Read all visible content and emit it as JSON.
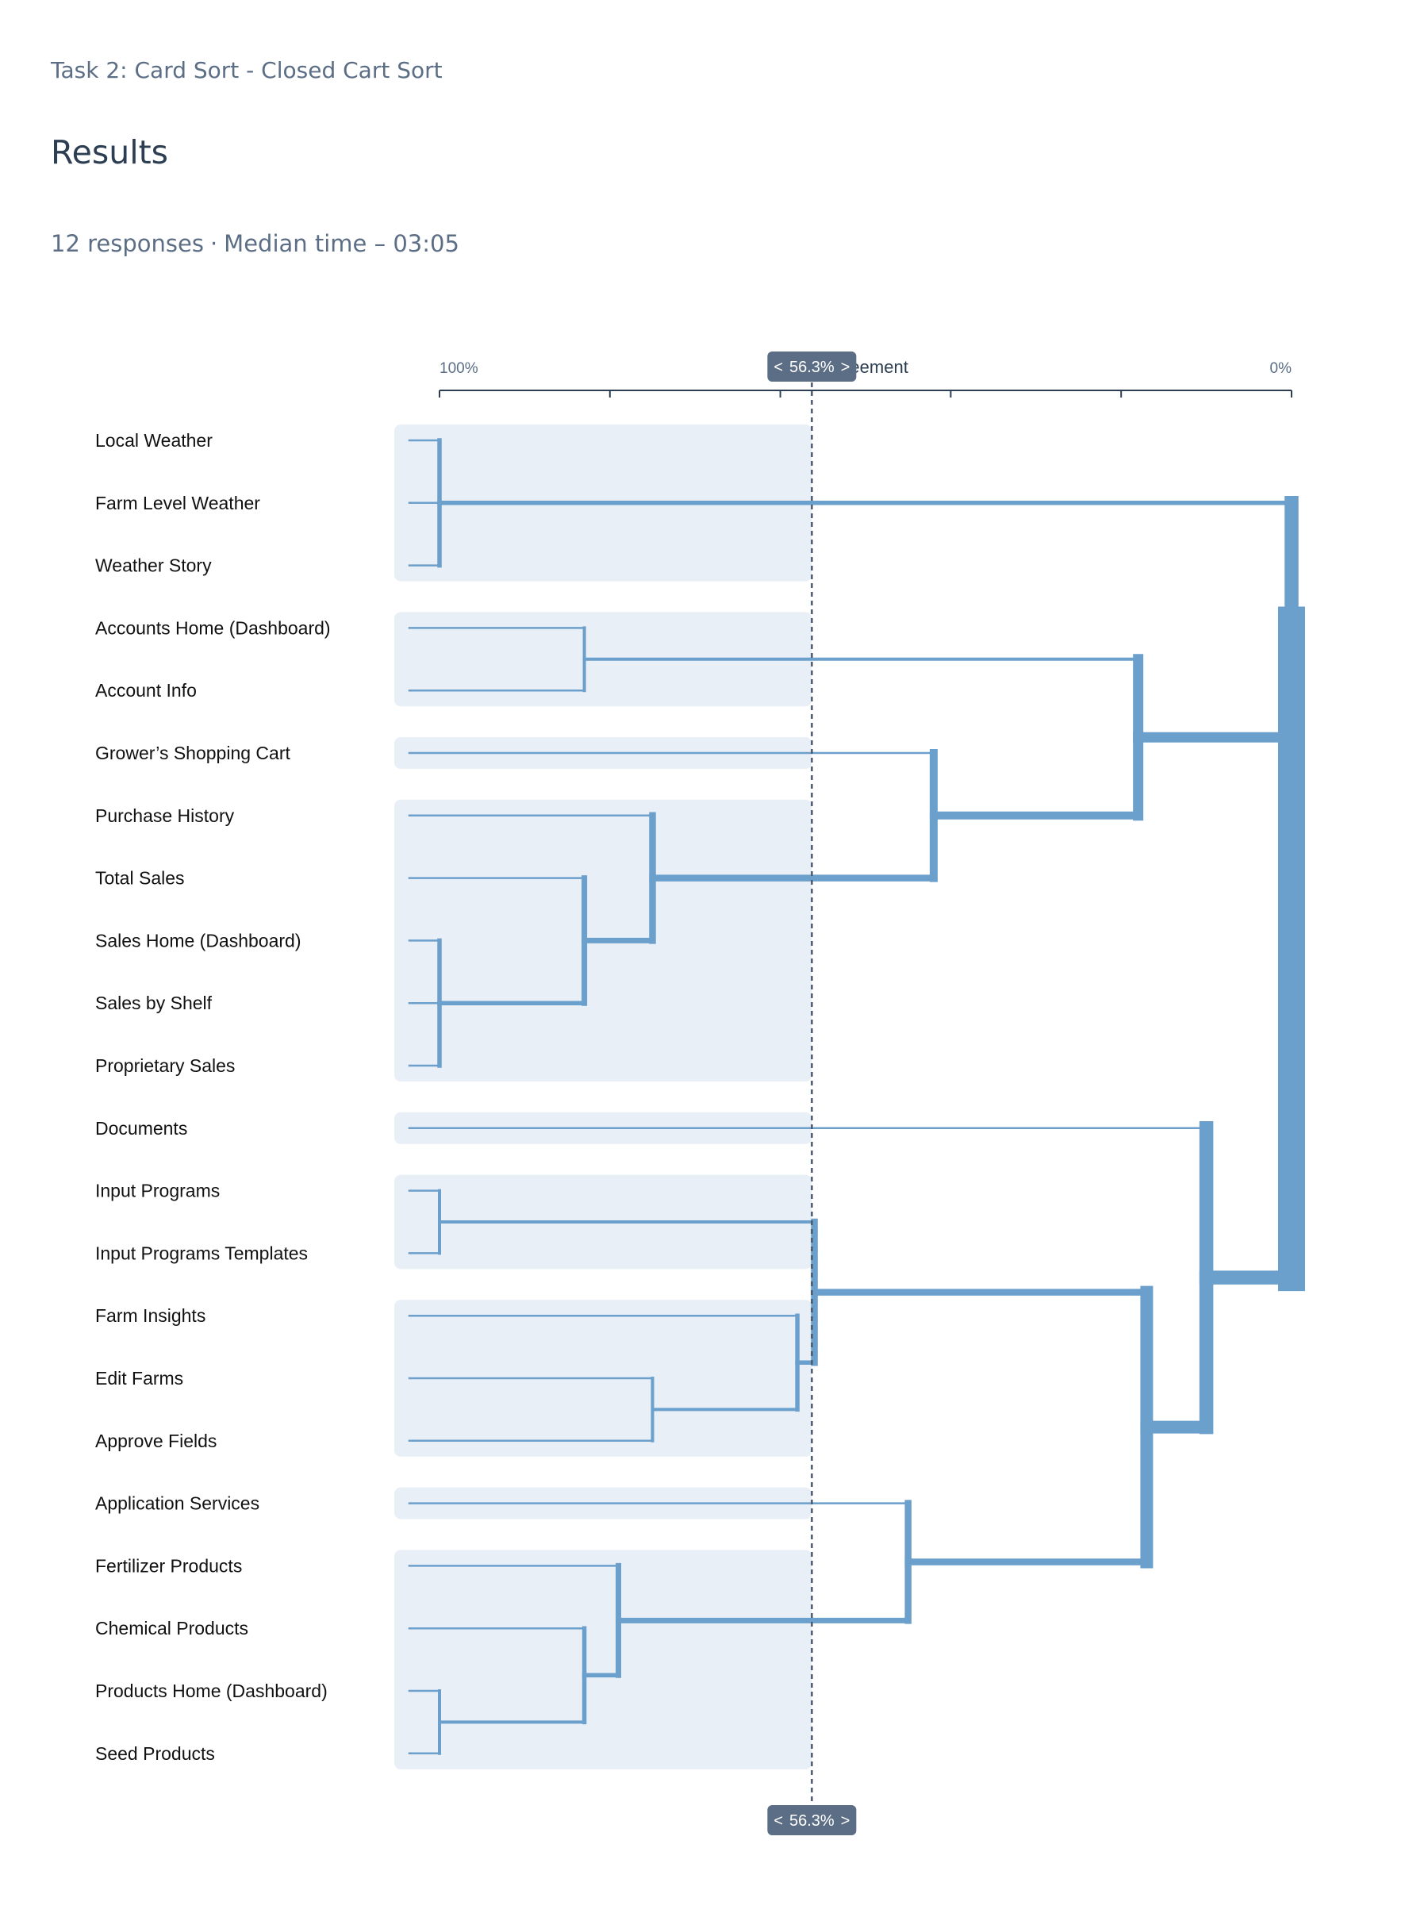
{
  "header": {
    "task_title": "Task 2: Card Sort - Closed Cart Sort",
    "page_title": "Results",
    "responses": "12 responses",
    "median_time": "Median time – 03:05"
  },
  "chart_data": {
    "type": "dendrogram",
    "axis": {
      "title": "Agreement",
      "left_label": "100%",
      "right_label": "0%",
      "range": [
        100,
        0
      ]
    },
    "threshold": {
      "value": 56.3,
      "label": "56.3%",
      "prev_glyph": "<",
      "next_glyph": ">"
    },
    "cards": [
      "Local Weather",
      "Farm Level Weather",
      "Weather Story",
      "Accounts Home (Dashboard)",
      "Account Info",
      "Grower’s Shopping Cart",
      "Purchase History",
      "Total Sales",
      "Sales Home (Dashboard)",
      "Sales by Shelf",
      "Proprietary Sales",
      "Documents",
      "Input Programs",
      "Input Programs Templates",
      "Farm Insights",
      "Edit Farms",
      "Approve Fields",
      "Application Services",
      "Fertilizer Products",
      "Chemical Products",
      "Products Home (Dashboard)",
      "Seed Products"
    ],
    "clusters_at_threshold": [
      [
        0,
        2
      ],
      [
        3,
        4
      ],
      [
        5,
        5
      ],
      [
        6,
        10
      ],
      [
        11,
        11
      ],
      [
        12,
        13
      ],
      [
        14,
        16
      ],
      [
        17,
        17
      ],
      [
        18,
        21
      ]
    ],
    "merges": [
      {
        "id": "A",
        "children": [
          0,
          1,
          2
        ],
        "agreement": 100
      },
      {
        "id": "B",
        "children": [
          3,
          4
        ],
        "agreement": 83
      },
      {
        "id": "C",
        "children": [
          8,
          9,
          10
        ],
        "agreement": 100
      },
      {
        "id": "D",
        "children": [
          7,
          "C"
        ],
        "agreement": 83
      },
      {
        "id": "E",
        "children": [
          6,
          "D"
        ],
        "agreement": 75
      },
      {
        "id": "F",
        "children": [
          5,
          "E"
        ],
        "agreement": 42
      },
      {
        "id": "G",
        "children": [
          "B",
          "F"
        ],
        "agreement": 18
      },
      {
        "id": "H",
        "children": [
          "G",
          "A"
        ],
        "agreement": 0
      },
      {
        "id": "I",
        "children": [
          12,
          13
        ],
        "agreement": 100
      },
      {
        "id": "J",
        "children": [
          15,
          16
        ],
        "agreement": 75
      },
      {
        "id": "K",
        "children": [
          14,
          "J"
        ],
        "agreement": 58
      },
      {
        "id": "L",
        "children": [
          "I",
          "K"
        ],
        "agreement": 56
      },
      {
        "id": "M",
        "children": [
          20,
          21
        ],
        "agreement": 100
      },
      {
        "id": "N",
        "children": [
          19,
          "M"
        ],
        "agreement": 83
      },
      {
        "id": "O",
        "children": [
          18,
          "N"
        ],
        "agreement": 79
      },
      {
        "id": "P",
        "children": [
          17,
          "O"
        ],
        "agreement": 45
      },
      {
        "id": "Q",
        "children": [
          "L",
          "P"
        ],
        "agreement": 17
      },
      {
        "id": "R",
        "children": [
          11,
          "Q"
        ],
        "agreement": 10
      },
      {
        "id": "S",
        "children": [
          "H",
          "R"
        ],
        "agreement": 0
      }
    ],
    "colors": {
      "branch": "#6b9fcc",
      "cluster_band": "#e9eff6",
      "badge": "#5b6e85",
      "axis": "#2d3e52",
      "threshold_line": "#4a5a6e"
    }
  }
}
